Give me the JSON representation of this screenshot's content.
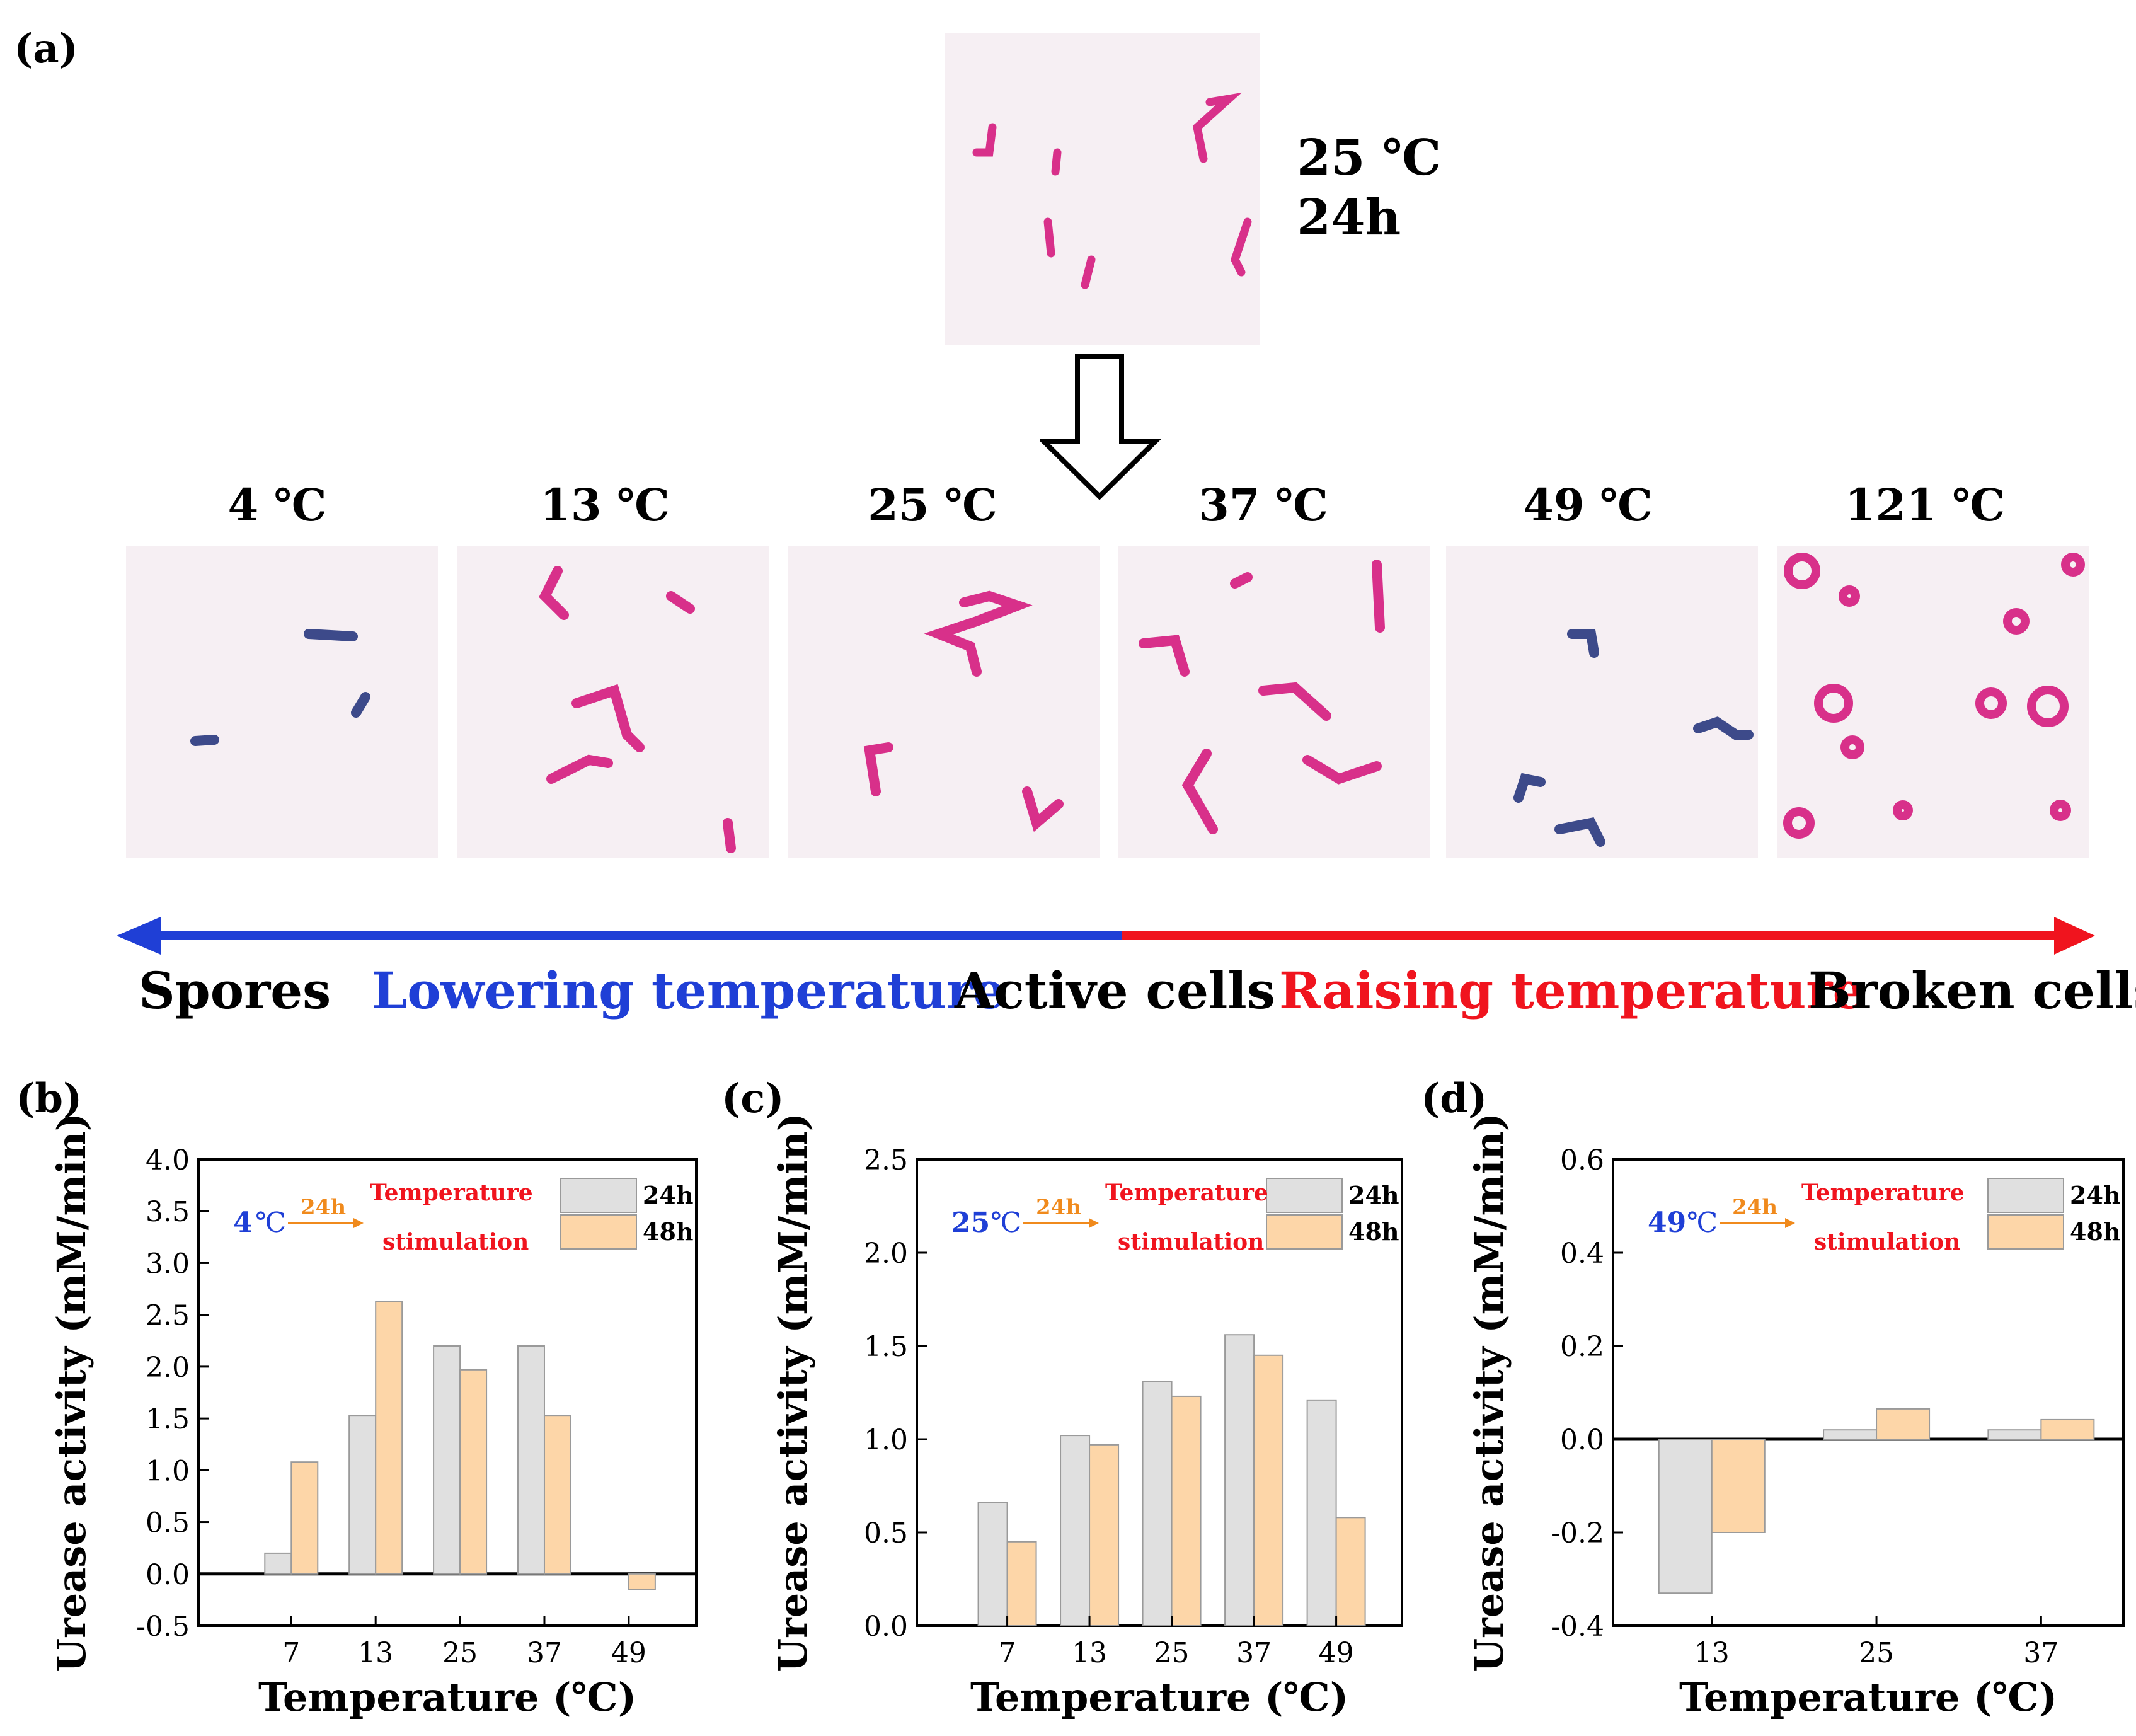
{
  "panel_a": {
    "label": "(a)",
    "top_caption": {
      "temp": "25 ℃",
      "time": "24h"
    },
    "temps": [
      "4 ℃",
      "13 ℃",
      "25 ℃",
      "37 ℃",
      "49 ℃",
      "121 ℃"
    ],
    "bottom": {
      "left": "Spores",
      "lowering": "Lowering temperature",
      "middle": "Active cells",
      "raising": "Raising temperature",
      "right": "Broken cells"
    },
    "colors": {
      "blue": "#1f3fd6",
      "red": "#f0141e",
      "stain": "#d8308a"
    }
  },
  "chart_data": [
    {
      "label": "(b)",
      "type": "bar",
      "title": "",
      "xlabel": "Temperature (℃)",
      "ylabel": "Urease activity (mM/min)",
      "categories": [
        "7",
        "13",
        "25",
        "37",
        "49"
      ],
      "series": [
        {
          "name": "24h",
          "values": [
            0.2,
            1.53,
            2.2,
            2.2,
            0
          ],
          "color": "#e0e0e0"
        },
        {
          "name": "48h",
          "values": [
            1.08,
            2.63,
            1.97,
            1.53,
            -0.15
          ],
          "color": "#fdd6a8"
        }
      ],
      "ylim": [
        -0.5,
        4.0
      ],
      "yticks": [
        "-0.5",
        "0.0",
        "0.5",
        "1.0",
        "1.5",
        "2.0",
        "2.5",
        "3.0",
        "3.5",
        "4.0"
      ],
      "ytick_values": [
        -0.5,
        0,
        0.5,
        1,
        1.5,
        2,
        2.5,
        3,
        3.5,
        4
      ],
      "annotation": {
        "start": "4",
        "start_unit": "℃",
        "arrow_label": "24h",
        "result_line1": "Temperature",
        "result_line2": "stimulation"
      },
      "legend": "top-right"
    },
    {
      "label": "(c)",
      "type": "bar",
      "title": "",
      "xlabel": "Temperature (℃)",
      "ylabel": "Urease activity (mM/min)",
      "categories": [
        "7",
        "13",
        "25",
        "37",
        "49"
      ],
      "series": [
        {
          "name": "24h",
          "values": [
            0.66,
            1.02,
            1.31,
            1.56,
            1.21
          ],
          "color": "#e0e0e0"
        },
        {
          "name": "48h",
          "values": [
            0.45,
            0.97,
            1.23,
            1.45,
            0.58
          ],
          "color": "#fdd6a8"
        }
      ],
      "ylim": [
        0.0,
        2.5
      ],
      "yticks": [
        "0.0",
        "0.5",
        "1.0",
        "1.5",
        "2.0",
        "2.5"
      ],
      "ytick_values": [
        0,
        0.5,
        1,
        1.5,
        2,
        2.5
      ],
      "annotation": {
        "start": "25",
        "start_unit": "℃",
        "arrow_label": "24h",
        "result_line1": "Temperature",
        "result_line2": "stimulation"
      },
      "legend": "top-right"
    },
    {
      "label": "(d)",
      "type": "bar",
      "title": "",
      "xlabel": "Temperature (℃)",
      "ylabel": "Urease activity (mM/min)",
      "categories": [
        "13",
        "25",
        "37"
      ],
      "series": [
        {
          "name": "24h",
          "values": [
            -0.33,
            0.02,
            0.02
          ],
          "color": "#e0e0e0"
        },
        {
          "name": "48h",
          "values": [
            -0.2,
            0.065,
            0.042
          ],
          "color": "#fdd6a8"
        }
      ],
      "ylim": [
        -0.4,
        0.6
      ],
      "yticks": [
        "-0.4",
        "-0.2",
        "0.0",
        "0.2",
        "0.4",
        "0.6"
      ],
      "ytick_values": [
        -0.4,
        -0.2,
        0,
        0.2,
        0.4,
        0.6
      ],
      "annotation": {
        "start": "49",
        "start_unit": "℃",
        "arrow_label": "24h",
        "result_line1": "Temperature",
        "result_line2": "stimulation"
      },
      "legend": "top-right"
    }
  ]
}
